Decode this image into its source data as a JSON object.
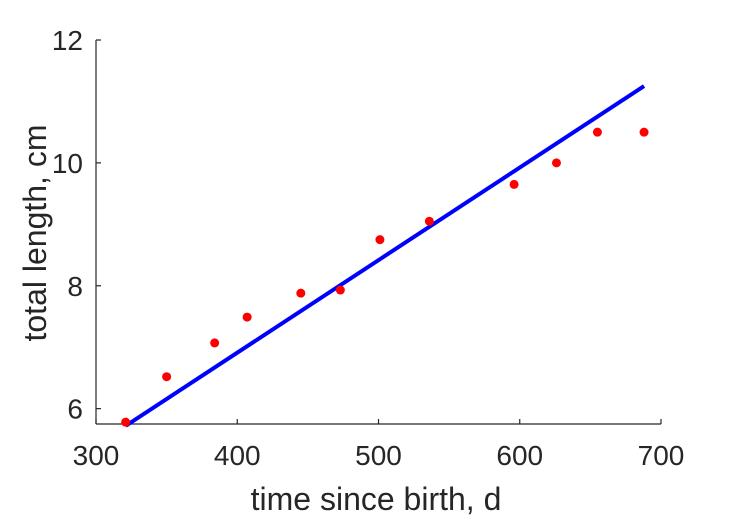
{
  "chart_data": {
    "type": "scatter",
    "title": "",
    "xlabel": "time since birth, d",
    "ylabel": "total length, cm",
    "xlim": [
      300,
      700
    ],
    "ylim": [
      5.75,
      12
    ],
    "xticks": [
      300,
      400,
      500,
      600,
      700
    ],
    "yticks": [
      6,
      8,
      10,
      12
    ],
    "xtick_labels": [
      "300",
      "400",
      "500",
      "600",
      "700"
    ],
    "ytick_labels": [
      "6",
      "8",
      "10",
      "12"
    ],
    "grid": false,
    "legend": "none",
    "series": [
      {
        "type": "scatter",
        "color": "#ff0000",
        "marker": "circle",
        "x": [
          321,
          350,
          384,
          407,
          445,
          473,
          501,
          536,
          596,
          626,
          655,
          688
        ],
        "y": [
          5.78,
          6.52,
          7.07,
          7.49,
          7.88,
          7.93,
          8.75,
          9.05,
          9.65,
          10.0,
          10.5,
          10.5
        ]
      },
      {
        "type": "line",
        "color": "#0000ff",
        "x": [
          321,
          688
        ],
        "y": [
          5.72,
          11.25
        ]
      }
    ]
  }
}
